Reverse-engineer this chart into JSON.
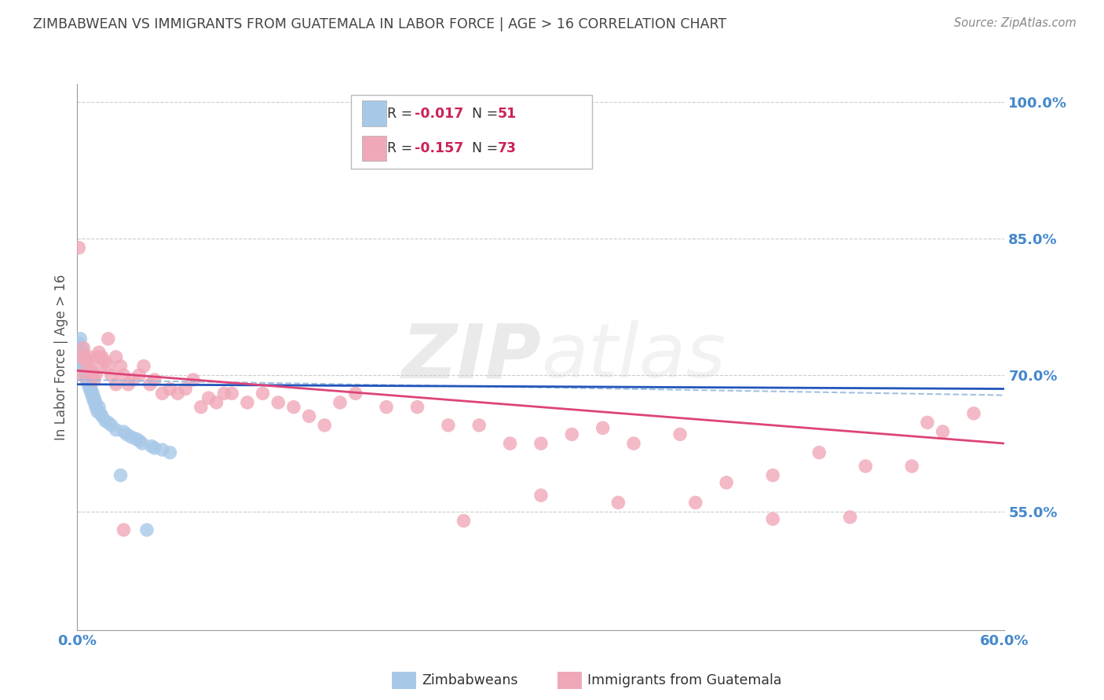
{
  "title": "ZIMBABWEAN VS IMMIGRANTS FROM GUATEMALA IN LABOR FORCE | AGE > 16 CORRELATION CHART",
  "source": "Source: ZipAtlas.com",
  "ylabel": "In Labor Force | Age > 16",
  "xlim": [
    0.0,
    0.6
  ],
  "ylim": [
    0.42,
    1.02
  ],
  "yticks": [
    0.55,
    0.7,
    0.85,
    1.0
  ],
  "ytick_labels": [
    "55.0%",
    "70.0%",
    "85.0%",
    "100.0%"
  ],
  "xtick_positions": [
    0.0,
    0.6
  ],
  "xtick_labels": [
    "0.0%",
    "60.0%"
  ],
  "series1_label": "Zimbabweans",
  "series1_R": -0.017,
  "series1_N": 51,
  "series1_color": "#a8c8e8",
  "series1_line_color": "#2255bb",
  "series1_dash_color": "#99bbdd",
  "series2_label": "Immigrants from Guatemala",
  "series2_R": -0.157,
  "series2_N": 73,
  "series2_color": "#f0a8b8",
  "series2_line_color": "#dd4477",
  "background_color": "#ffffff",
  "grid_color": "#cccccc",
  "title_color": "#444444",
  "axis_label_color": "#555555",
  "tick_color": "#4488cc",
  "legend_R_color": "#cc2255",
  "zim_x": [
    0.001,
    0.001,
    0.002,
    0.002,
    0.002,
    0.003,
    0.003,
    0.003,
    0.003,
    0.004,
    0.004,
    0.004,
    0.005,
    0.005,
    0.005,
    0.006,
    0.006,
    0.006,
    0.007,
    0.007,
    0.007,
    0.008,
    0.008,
    0.009,
    0.009,
    0.01,
    0.01,
    0.011,
    0.011,
    0.012,
    0.012,
    0.013,
    0.014,
    0.015,
    0.016,
    0.018,
    0.02,
    0.022,
    0.025,
    0.028,
    0.03,
    0.032,
    0.035,
    0.038,
    0.04,
    0.042,
    0.045,
    0.048,
    0.05,
    0.055,
    0.06
  ],
  "zim_y": [
    0.73,
    0.735,
    0.72,
    0.725,
    0.74,
    0.715,
    0.72,
    0.725,
    0.73,
    0.71,
    0.715,
    0.72,
    0.7,
    0.705,
    0.71,
    0.695,
    0.7,
    0.705,
    0.69,
    0.695,
    0.7,
    0.685,
    0.69,
    0.68,
    0.685,
    0.675,
    0.68,
    0.67,
    0.675,
    0.665,
    0.67,
    0.66,
    0.665,
    0.658,
    0.655,
    0.65,
    0.648,
    0.645,
    0.64,
    0.59,
    0.638,
    0.635,
    0.632,
    0.63,
    0.628,
    0.625,
    0.53,
    0.622,
    0.62,
    0.618,
    0.615
  ],
  "gua_x": [
    0.001,
    0.002,
    0.003,
    0.004,
    0.005,
    0.006,
    0.007,
    0.008,
    0.009,
    0.01,
    0.011,
    0.012,
    0.013,
    0.014,
    0.015,
    0.016,
    0.018,
    0.02,
    0.022,
    0.025,
    0.028,
    0.03,
    0.033,
    0.036,
    0.04,
    0.043,
    0.047,
    0.05,
    0.055,
    0.06,
    0.065,
    0.07,
    0.075,
    0.08,
    0.085,
    0.09,
    0.095,
    0.1,
    0.11,
    0.12,
    0.13,
    0.14,
    0.15,
    0.16,
    0.17,
    0.18,
    0.2,
    0.22,
    0.24,
    0.26,
    0.28,
    0.3,
    0.32,
    0.34,
    0.36,
    0.39,
    0.42,
    0.45,
    0.48,
    0.51,
    0.54,
    0.56,
    0.58,
    0.25,
    0.3,
    0.35,
    0.4,
    0.45,
    0.5,
    0.55,
    0.02,
    0.025,
    0.03
  ],
  "gua_y": [
    0.84,
    0.72,
    0.7,
    0.73,
    0.72,
    0.715,
    0.71,
    0.72,
    0.705,
    0.7,
    0.695,
    0.7,
    0.72,
    0.725,
    0.71,
    0.72,
    0.715,
    0.71,
    0.7,
    0.72,
    0.71,
    0.7,
    0.69,
    0.695,
    0.7,
    0.71,
    0.69,
    0.695,
    0.68,
    0.685,
    0.68,
    0.685,
    0.695,
    0.665,
    0.675,
    0.67,
    0.68,
    0.68,
    0.67,
    0.68,
    0.67,
    0.665,
    0.655,
    0.645,
    0.67,
    0.68,
    0.665,
    0.665,
    0.645,
    0.645,
    0.625,
    0.625,
    0.635,
    0.642,
    0.625,
    0.635,
    0.582,
    0.59,
    0.615,
    0.6,
    0.6,
    0.638,
    0.658,
    0.54,
    0.568,
    0.56,
    0.56,
    0.542,
    0.544,
    0.648,
    0.74,
    0.69,
    0.53
  ]
}
